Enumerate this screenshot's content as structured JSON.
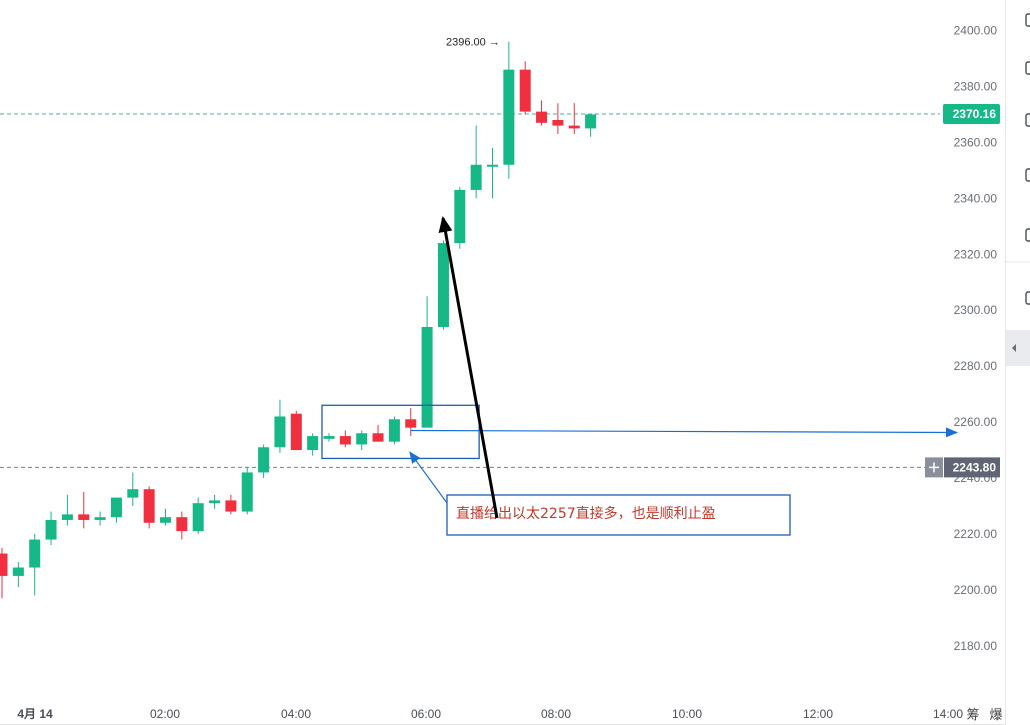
{
  "chart_data": {
    "type": "candlestick",
    "y_ticks": [
      "2400.00",
      "2380.00",
      "2360.00",
      "2340.00",
      "2320.00",
      "2300.00",
      "2280.00",
      "2260.00",
      "2240.00",
      "2220.00",
      "2200.00",
      "2180.00"
    ],
    "x_ticks": [
      "4月 14",
      "02:00",
      "04:00",
      "06:00",
      "08:00",
      "10:00",
      "12:00",
      "14:00"
    ],
    "ylim": [
      2172,
      2410
    ],
    "candles": [
      {
        "o": 2213,
        "h": 2215,
        "l": 2197,
        "c": 2205
      },
      {
        "o": 2205,
        "h": 2210,
        "l": 2201,
        "c": 2208
      },
      {
        "o": 2208,
        "h": 2220,
        "l": 2198,
        "c": 2218
      },
      {
        "o": 2218,
        "h": 2228,
        "l": 2216,
        "c": 2225
      },
      {
        "o": 2225,
        "h": 2234,
        "l": 2223,
        "c": 2227
      },
      {
        "o": 2227,
        "h": 2235,
        "l": 2222,
        "c": 2225
      },
      {
        "o": 2225,
        "h": 2228,
        "l": 2223,
        "c": 2226
      },
      {
        "o": 2226,
        "h": 2233,
        "l": 2224,
        "c": 2233
      },
      {
        "o": 2233,
        "h": 2242,
        "l": 2230,
        "c": 2236
      },
      {
        "o": 2236,
        "h": 2237,
        "l": 2222,
        "c": 2224
      },
      {
        "o": 2224,
        "h": 2229,
        "l": 2223,
        "c": 2226
      },
      {
        "o": 2226,
        "h": 2228,
        "l": 2218,
        "c": 2221
      },
      {
        "o": 2221,
        "h": 2233,
        "l": 2220,
        "c": 2231
      },
      {
        "o": 2231,
        "h": 2234,
        "l": 2229,
        "c": 2232
      },
      {
        "o": 2232,
        "h": 2234,
        "l": 2227,
        "c": 2228
      },
      {
        "o": 2228,
        "h": 2244,
        "l": 2227,
        "c": 2242
      },
      {
        "o": 2242,
        "h": 2252,
        "l": 2240,
        "c": 2251
      },
      {
        "o": 2251,
        "h": 2268,
        "l": 2249,
        "c": 2262
      },
      {
        "o": 2263,
        "h": 2264,
        "l": 2250,
        "c": 2250
      },
      {
        "o": 2250,
        "h": 2256,
        "l": 2248,
        "c": 2255
      },
      {
        "o": 2254,
        "h": 2256,
        "l": 2253,
        "c": 2255
      },
      {
        "o": 2255,
        "h": 2257,
        "l": 2251,
        "c": 2252
      },
      {
        "o": 2252,
        "h": 2257,
        "l": 2250,
        "c": 2256
      },
      {
        "o": 2256,
        "h": 2259,
        "l": 2253,
        "c": 2253
      },
      {
        "o": 2253,
        "h": 2262,
        "l": 2252,
        "c": 2261
      },
      {
        "o": 2261,
        "h": 2265,
        "l": 2255,
        "c": 2258
      },
      {
        "o": 2258,
        "h": 2305,
        "l": 2258,
        "c": 2294
      },
      {
        "o": 2294,
        "h": 2325,
        "l": 2293,
        "c": 2324
      },
      {
        "o": 2324,
        "h": 2344,
        "l": 2322,
        "c": 2343
      },
      {
        "o": 2343,
        "h": 2366,
        "l": 2340,
        "c": 2352
      },
      {
        "o": 2352,
        "h": 2358,
        "l": 2340,
        "c": 2352
      },
      {
        "o": 2352,
        "h": 2396,
        "l": 2347,
        "c": 2386
      },
      {
        "o": 2386,
        "h": 2389,
        "l": 2370,
        "c": 2371
      },
      {
        "o": 2371,
        "h": 2375,
        "l": 2366,
        "c": 2367
      },
      {
        "o": 2368,
        "h": 2374,
        "l": 2363,
        "c": 2366
      },
      {
        "o": 2366,
        "h": 2374,
        "l": 2363,
        "c": 2365
      },
      {
        "o": 2365,
        "h": 2370,
        "l": 2362,
        "c": 2370
      }
    ],
    "last_price": "2370.16",
    "crosshair_price": "2243.80",
    "high_label": "2396.00",
    "annotation_text": "直播给出以太2257直接多，也是顺利止盈",
    "colors": {
      "up": "#16b888",
      "down": "#f0303e",
      "last_tag": "#16b888",
      "crosshair_tag": "#5f6575",
      "arrow_blue": "#1a6fd6",
      "box_blue": "#1a5fb4",
      "annotation_red": "#c0392b"
    }
  },
  "right_toolbar": {
    "bottom_labels": [
      "筹",
      "爆"
    ]
  }
}
